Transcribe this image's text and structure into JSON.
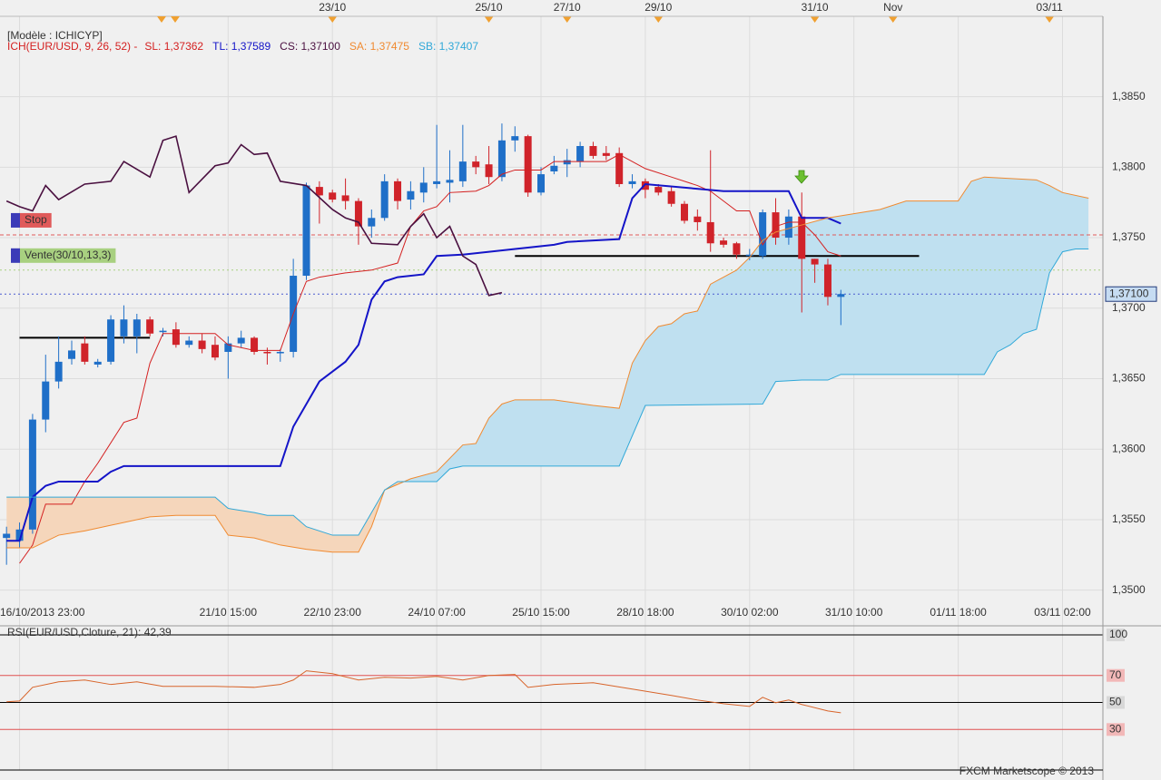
{
  "chart_data": [
    {
      "type": "candlestick",
      "title": "[Modèle : ICHICYP]",
      "subtitle": "ICH(EUR/USD, 9, 26, 52) -",
      "xlim": [
        -0.5,
        84.1
      ],
      "ylim": [
        1.3494,
        1.3907
      ],
      "yticks": [
        {
          "value": 1.35,
          "label": "1,3500"
        },
        {
          "value": 1.355,
          "label": "1,3550"
        },
        {
          "value": 1.36,
          "label": "1,3600"
        },
        {
          "value": 1.365,
          "label": "1,3650"
        },
        {
          "value": 1.37,
          "label": "1,3700"
        },
        {
          "value": 1.375,
          "label": "1,3750"
        },
        {
          "value": 1.38,
          "label": "1,3800"
        },
        {
          "value": 1.385,
          "label": "1,3850"
        }
      ],
      "xticks": [
        {
          "value": 1,
          "label": "16/10/2013 23:00"
        },
        {
          "value": 17,
          "label": "21/10 15:00"
        },
        {
          "value": 25,
          "label": "22/10 23:00"
        },
        {
          "value": 33,
          "label": "24/10 07:00"
        },
        {
          "value": 41,
          "label": "25/10 15:00"
        },
        {
          "value": 49,
          "label": "28/10 18:00"
        },
        {
          "value": 57,
          "label": "30/10 02:00"
        },
        {
          "value": 65,
          "label": "31/10 10:00"
        },
        {
          "value": 73,
          "label": "01/11 18:00"
        },
        {
          "value": 81,
          "label": "03/11 02:00"
        }
      ],
      "x2ticks": [
        {
          "value": 25,
          "label": "23/10"
        },
        {
          "value": 37,
          "label": "25/10"
        },
        {
          "value": 43,
          "label": "27/10"
        },
        {
          "value": 50,
          "label": "29/10"
        },
        {
          "value": 62,
          "label": "31/10"
        },
        {
          "value": 68,
          "label": "Nov"
        },
        {
          "value": 80,
          "label": "03/11"
        }
      ],
      "up_color": "#1f6fc8",
      "down_color": "#d0232a",
      "open": [
        1.3537,
        1.3535,
        1.3543,
        1.3621,
        1.3648,
        1.3664,
        1.3675,
        1.366,
        1.3662,
        1.368,
        1.368,
        1.3692,
        1.3683,
        1.3685,
        1.3674,
        1.3677,
        1.3674,
        1.3669,
        1.3675,
        1.3679,
        1.3669,
        1.3668,
        1.3669,
        1.3723,
        1.3786,
        1.3782,
        1.378,
        1.3776,
        1.3758,
        1.3764,
        1.379,
        1.3777,
        1.3782,
        1.3788,
        1.3789,
        1.379,
        1.3804,
        1.3802,
        1.3793,
        1.3819,
        1.3822,
        1.3782,
        1.3797,
        1.3802,
        1.3804,
        1.3815,
        1.381,
        1.381,
        1.3788,
        1.379,
        1.3786,
        1.3783,
        1.3774,
        1.3765,
        1.3761,
        1.3748,
        1.3746,
        1.3737,
        1.3737,
        1.3768,
        1.375,
        1.3765,
        1.3735,
        1.3731,
        1.3708
      ],
      "high": [
        1.3545,
        1.3548,
        1.3625,
        1.3667,
        1.368,
        1.3677,
        1.368,
        1.3664,
        1.3695,
        1.3702,
        1.3696,
        1.3694,
        1.3686,
        1.369,
        1.368,
        1.3682,
        1.368,
        1.368,
        1.3684,
        1.368,
        1.3672,
        1.3671,
        1.3735,
        1.3789,
        1.379,
        1.3784,
        1.3792,
        1.3778,
        1.377,
        1.3795,
        1.3792,
        1.379,
        1.38,
        1.383,
        1.3812,
        1.383,
        1.3808,
        1.3815,
        1.3831,
        1.3829,
        1.3823,
        1.38,
        1.3808,
        1.3813,
        1.3818,
        1.3818,
        1.3815,
        1.3814,
        1.3795,
        1.3792,
        1.3788,
        1.3786,
        1.3776,
        1.377,
        1.3812,
        1.375,
        1.3747,
        1.3742,
        1.377,
        1.3778,
        1.377,
        1.3782,
        1.3735,
        1.3735,
        1.3713
      ],
      "low": [
        1.3518,
        1.353,
        1.354,
        1.3612,
        1.3643,
        1.366,
        1.366,
        1.3658,
        1.366,
        1.3675,
        1.3668,
        1.368,
        1.368,
        1.3672,
        1.3672,
        1.3668,
        1.3663,
        1.365,
        1.3672,
        1.3667,
        1.366,
        1.3662,
        1.3665,
        1.372,
        1.376,
        1.3775,
        1.377,
        1.3745,
        1.375,
        1.3762,
        1.377,
        1.377,
        1.3775,
        1.3785,
        1.3775,
        1.3786,
        1.3795,
        1.3788,
        1.379,
        1.3811,
        1.3779,
        1.378,
        1.3795,
        1.3793,
        1.38,
        1.3806,
        1.3805,
        1.3786,
        1.3785,
        1.3778,
        1.378,
        1.3772,
        1.376,
        1.3755,
        1.374,
        1.3743,
        1.3735,
        1.3734,
        1.3735,
        1.3745,
        1.3745,
        1.3697,
        1.3718,
        1.3702,
        1.3688
      ],
      "close": [
        1.354,
        1.3543,
        1.3621,
        1.3648,
        1.3662,
        1.367,
        1.3662,
        1.3662,
        1.3692,
        1.3692,
        1.3692,
        1.3682,
        1.3684,
        1.3674,
        1.3677,
        1.3671,
        1.3665,
        1.3675,
        1.3679,
        1.3669,
        1.3668,
        1.3669,
        1.3723,
        1.3787,
        1.378,
        1.3777,
        1.3776,
        1.3758,
        1.3764,
        1.379,
        1.3776,
        1.3783,
        1.3789,
        1.379,
        1.3791,
        1.3804,
        1.38,
        1.3793,
        1.3819,
        1.3822,
        1.3782,
        1.3795,
        1.3801,
        1.3805,
        1.3815,
        1.3808,
        1.3808,
        1.3788,
        1.379,
        1.3784,
        1.3782,
        1.3774,
        1.3762,
        1.3761,
        1.3746,
        1.3745,
        1.3738,
        1.3738,
        1.3768,
        1.375,
        1.3765,
        1.3735,
        1.3731,
        1.3708,
        1.371
      ],
      "series": [
        {
          "name": "SL: 1,37362",
          "color": "#d42020",
          "width": 1,
          "x": [
            1,
            2,
            3,
            5,
            6,
            7,
            9,
            10,
            11,
            12,
            16,
            17,
            19,
            21,
            22,
            23,
            24,
            26,
            28,
            30,
            31,
            32,
            33,
            34,
            36,
            37,
            38,
            39,
            41,
            42,
            46,
            47,
            49,
            51,
            53,
            54,
            56,
            57,
            58,
            59,
            60,
            61,
            62,
            63,
            64
          ],
          "values": [
            1.3519,
            1.3532,
            1.3561,
            1.3561,
            1.3577,
            1.359,
            1.3619,
            1.3622,
            1.3661,
            1.3682,
            1.3682,
            1.3674,
            1.367,
            1.367,
            1.3696,
            1.3719,
            1.3722,
            1.3725,
            1.3727,
            1.3732,
            1.3758,
            1.3769,
            1.3772,
            1.3782,
            1.3783,
            1.3787,
            1.3795,
            1.3798,
            1.3798,
            1.3804,
            1.3804,
            1.3809,
            1.3799,
            1.3793,
            1.3787,
            1.3783,
            1.3769,
            1.3769,
            1.3745,
            1.3758,
            1.3761,
            1.3761,
            1.3752,
            1.374,
            1.3737
          ]
        },
        {
          "name": "TL: 1,37589",
          "color": "#1414c8",
          "width": 2,
          "x": [
            0,
            1,
            2,
            3,
            4,
            7,
            8,
            9,
            21,
            22,
            24,
            25,
            26,
            27,
            28,
            29,
            30,
            32,
            33,
            35,
            42,
            43,
            47,
            48,
            49,
            55,
            60,
            61,
            63,
            64
          ],
          "values": [
            1.3535,
            1.3535,
            1.3566,
            1.3574,
            1.3577,
            1.3577,
            1.3584,
            1.3588,
            1.3588,
            1.3616,
            1.3648,
            1.3655,
            1.3662,
            1.3674,
            1.3706,
            1.3719,
            1.3722,
            1.3724,
            1.3737,
            1.3738,
            1.3745,
            1.3747,
            1.3749,
            1.3778,
            1.3788,
            1.3783,
            1.3783,
            1.3764,
            1.3764,
            1.376
          ]
        },
        {
          "name": "CS: 1,37100",
          "color": "#4a1040",
          "width": 1.6,
          "x": [
            0,
            1,
            2,
            3,
            4,
            6,
            8,
            9,
            11,
            12,
            13,
            14,
            16,
            17,
            18,
            19,
            20,
            21,
            23,
            25,
            26,
            27,
            28,
            30,
            31,
            32,
            33,
            34,
            35,
            36,
            37,
            38
          ],
          "values": [
            1.3776,
            1.3772,
            1.3769,
            1.3787,
            1.3777,
            1.3788,
            1.379,
            1.3804,
            1.3793,
            1.3819,
            1.3822,
            1.3782,
            1.3801,
            1.3803,
            1.3816,
            1.3809,
            1.381,
            1.379,
            1.3787,
            1.377,
            1.3764,
            1.3761,
            1.3746,
            1.3745,
            1.3758,
            1.3767,
            1.375,
            1.3758,
            1.3737,
            1.3731,
            1.3709,
            1.3711
          ]
        },
        {
          "name": "SA: 1,37475",
          "color": "#f08a30",
          "width": 1,
          "x": [
            0,
            2,
            4,
            6,
            8,
            11,
            13,
            16,
            17,
            19,
            21,
            23,
            25,
            27,
            28,
            29,
            31,
            33,
            35,
            36,
            37,
            38,
            39,
            42,
            45,
            47,
            48,
            49,
            50,
            51,
            52,
            53,
            54,
            55,
            56,
            57,
            58,
            59,
            61,
            63,
            65,
            67,
            69,
            73,
            74,
            75,
            79,
            80,
            81,
            83
          ],
          "values": [
            1.353,
            1.353,
            1.3539,
            1.3542,
            1.3546,
            1.3552,
            1.3553,
            1.3553,
            1.3539,
            1.3537,
            1.3532,
            1.3529,
            1.3527,
            1.3527,
            1.3545,
            1.3571,
            1.3579,
            1.3584,
            1.3603,
            1.3604,
            1.3622,
            1.3632,
            1.3635,
            1.3635,
            1.3631,
            1.3629,
            1.3661,
            1.3677,
            1.3687,
            1.3689,
            1.3696,
            1.3698,
            1.3717,
            1.3722,
            1.3727,
            1.3736,
            1.3748,
            1.3754,
            1.3759,
            1.3764,
            1.3767,
            1.377,
            1.3776,
            1.3776,
            1.379,
            1.3793,
            1.3791,
            1.3787,
            1.3782,
            1.3778
          ]
        },
        {
          "name": "SB: 1,37407",
          "color": "#30a8d8",
          "width": 1,
          "x": [
            0,
            16,
            17,
            19,
            20,
            22,
            23,
            25,
            27,
            28,
            29,
            30,
            33,
            34,
            35,
            47,
            49,
            58,
            59,
            61,
            63,
            64,
            75,
            76,
            77,
            78,
            79,
            80,
            81,
            82,
            83
          ],
          "values": [
            1.3566,
            1.3566,
            1.3558,
            1.3555,
            1.3553,
            1.3553,
            1.3545,
            1.3539,
            1.3539,
            1.3555,
            1.3571,
            1.3577,
            1.3577,
            1.3586,
            1.3588,
            1.3588,
            1.3631,
            1.3632,
            1.3648,
            1.3649,
            1.3649,
            1.3653,
            1.3653,
            1.3669,
            1.3674,
            1.3682,
            1.3685,
            1.3725,
            1.374,
            1.3742,
            1.3742
          ]
        }
      ],
      "levels": [
        {
          "label": "Stop",
          "value": 1.3752,
          "color": "#e05a5a"
        },
        {
          "label": "Vente(30/10,13,3)",
          "value": 1.3727,
          "color": "#a8d080"
        }
      ],
      "last_price": {
        "value": 1.371,
        "label": "1,37100",
        "color": "#4a5acf"
      },
      "trendlines": [
        {
          "x": [
            1,
            11
          ],
          "values": [
            1.3679,
            1.3679
          ]
        },
        {
          "x": [
            39,
            70
          ],
          "values": [
            1.3737,
            1.3737
          ]
        }
      ]
    },
    {
      "type": "line",
      "title": "RSI(EUR/USD,Cloture, 21): 42,39",
      "color": "#d8642a",
      "x": [
        0,
        1,
        2,
        4,
        6,
        8,
        10,
        12,
        16,
        19,
        21,
        22,
        23,
        25,
        27,
        29,
        31,
        33,
        35,
        37,
        39,
        40,
        42,
        45,
        48,
        51,
        53,
        55,
        57,
        58,
        59,
        60,
        61,
        63,
        64
      ],
      "values": [
        50.5,
        51.1,
        61.2,
        65.3,
        66.6,
        63.3,
        65.3,
        61.9,
        61.9,
        61.2,
        63.3,
        66.6,
        73.4,
        71.3,
        66.6,
        68.6,
        68.0,
        69.3,
        66.6,
        70.0,
        70.7,
        61.2,
        63.3,
        64.6,
        59.9,
        55.2,
        51.8,
        49.1,
        47.1,
        53.8,
        49.8,
        51.8,
        48.5,
        43.7,
        42.39
      ],
      "ylim": [
        0,
        100
      ],
      "yticks": [
        30,
        50,
        70,
        100
      ],
      "level_colors": [
        "#e05050",
        "#000000",
        "#e05050",
        "#000000"
      ]
    }
  ],
  "footer": "FXCM Marketscope © 2013"
}
